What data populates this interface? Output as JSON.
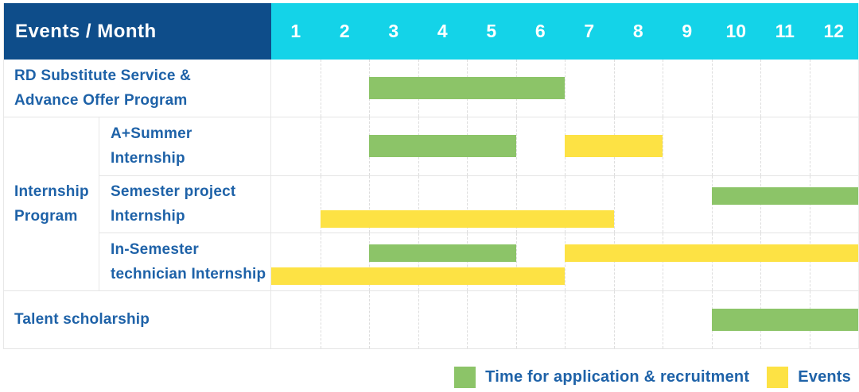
{
  "header": {
    "label": "Events / Month",
    "months": [
      "1",
      "2",
      "3",
      "4",
      "5",
      "6",
      "7",
      "8",
      "9",
      "10",
      "11",
      "12"
    ]
  },
  "colors": {
    "header_bg": "#0e4d8a",
    "month_header_bg": "#14d3e8",
    "label_text": "#1e62a8",
    "recruitment": "#8cc468",
    "event": "#fde244",
    "grid_line": "#dddddd",
    "row_border": "#e4e4e4"
  },
  "legend": {
    "items": [
      {
        "series": "recruitment",
        "label": "Time for application & recruitment",
        "color": "#8cc468"
      },
      {
        "series": "event",
        "label": "Events",
        "color": "#fde244"
      }
    ]
  },
  "chart_data": {
    "type": "gantt",
    "unit": "month",
    "axis_months": [
      1,
      2,
      3,
      4,
      5,
      6,
      7,
      8,
      9,
      10,
      11,
      12
    ],
    "series_legend": {
      "recruitment": "Time for application & recruitment",
      "event": "Events"
    },
    "rows": [
      {
        "group": null,
        "label": "RD Substitute Service & Advance Offer Program",
        "label_lines": [
          "RD Substitute Service &",
          "Advance Offer Program"
        ],
        "lines": 1,
        "bars": [
          {
            "series": "recruitment",
            "start_month": 3,
            "end_month": 6,
            "line": 0
          }
        ]
      },
      {
        "group": "Internship Program",
        "group_lines": [
          "Internship",
          "Program"
        ],
        "label": "A+Summer Internship",
        "label_lines": [
          "A+Summer",
          "Internship"
        ],
        "lines": 1,
        "bars": [
          {
            "series": "recruitment",
            "start_month": 3,
            "end_month": 5,
            "line": 0
          },
          {
            "series": "event",
            "start_month": 7,
            "end_month": 8,
            "line": 0
          }
        ]
      },
      {
        "group": "Internship Program",
        "label": "Semester project Internship",
        "label_lines": [
          "Semester project",
          "Internship"
        ],
        "lines": 2,
        "bars": [
          {
            "series": "recruitment",
            "start_month": 10,
            "end_month": 12,
            "line": 0
          },
          {
            "series": "event",
            "start_month": 2,
            "end_month": 7,
            "line": 1
          }
        ]
      },
      {
        "group": "Internship Program",
        "label": "In-Semester technician Internship",
        "label_lines": [
          "In-Semester",
          "technician Internship"
        ],
        "lines": 2,
        "bars": [
          {
            "series": "recruitment",
            "start_month": 3,
            "end_month": 5,
            "line": 0
          },
          {
            "series": "event",
            "start_month": 7,
            "end_month": 12,
            "line": 0
          },
          {
            "series": "event",
            "start_month": 1,
            "end_month": 6,
            "line": 1
          }
        ]
      },
      {
        "group": null,
        "label": "Talent scholarship",
        "label_lines": [
          "Talent scholarship"
        ],
        "lines": 1,
        "bars": [
          {
            "series": "recruitment",
            "start_month": 10,
            "end_month": 12,
            "line": 0
          }
        ]
      }
    ]
  }
}
